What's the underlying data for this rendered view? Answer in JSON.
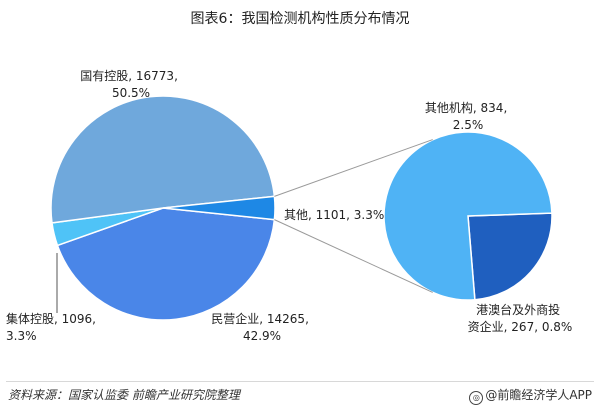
{
  "title": "图表6：我国检测机构性质分布情况",
  "source": "资料来源：国家认监委 前瞻产业研究院整理",
  "brand": "@前瞻经济学人APP",
  "chart_data": [
    {
      "type": "pie",
      "slices": [
        {
          "name": "国有控股",
          "value": 16773,
          "percent": "50.5%",
          "color": "#6FA8DC"
        },
        {
          "name": "集体控股",
          "value": 1096,
          "percent": "3.3%",
          "color": "#4FC3F7"
        },
        {
          "name": "民营企业",
          "value": 14265,
          "percent": "42.9%",
          "color": "#4A86E8"
        },
        {
          "name": "其他",
          "value": 1101,
          "percent": "3.3%",
          "color": "#1E88E5"
        }
      ],
      "labels": {
        "state": [
          "国有控股, 16773,",
          "50.5%"
        ],
        "collective": [
          "集体控股, 1096,",
          "3.3%"
        ],
        "private": [
          "民营企业, 14265,",
          "42.9%"
        ],
        "other": "其他, 1101, 3.3%"
      }
    },
    {
      "type": "pie",
      "breakdown_of": "其他",
      "slices": [
        {
          "name": "其他机构",
          "value": 834,
          "percent": "2.5%",
          "color": "#4FB3F5"
        },
        {
          "name": "港澳台及外商投资企业",
          "value": 267,
          "percent": "0.8%",
          "color": "#1F5FBF"
        }
      ],
      "labels": {
        "other_orgs": [
          "其他机构, 834,",
          "2.5%"
        ],
        "foreign": [
          "港澳台及外商投",
          "资企业, 267, 0.8%"
        ]
      }
    }
  ]
}
